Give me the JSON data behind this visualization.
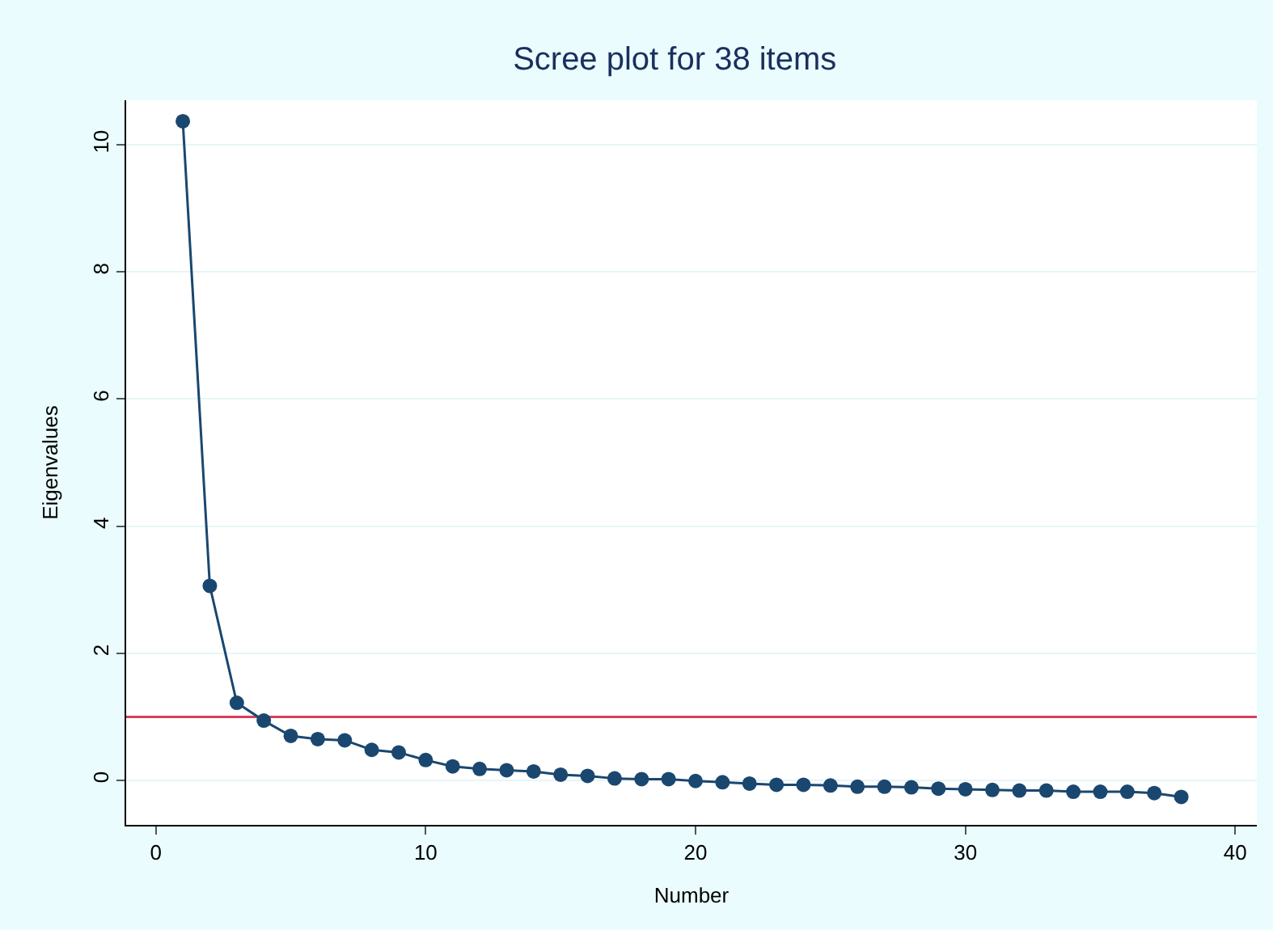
{
  "chart_data": {
    "type": "line",
    "title": "Scree plot for 38 items",
    "xlabel": "Number",
    "ylabel": "Eigenvalues",
    "x": [
      1,
      2,
      3,
      4,
      5,
      6,
      7,
      8,
      9,
      10,
      11,
      12,
      13,
      14,
      15,
      16,
      17,
      18,
      19,
      20,
      21,
      22,
      23,
      24,
      25,
      26,
      27,
      28,
      29,
      30,
      31,
      32,
      33,
      34,
      35,
      36,
      37,
      38
    ],
    "series": [
      {
        "color": "#1a476f",
        "values": [
          10.37,
          3.06,
          1.22,
          0.94,
          0.7,
          0.65,
          0.63,
          0.48,
          0.44,
          0.32,
          0.22,
          0.18,
          0.16,
          0.14,
          0.09,
          0.07,
          0.03,
          0.02,
          0.02,
          -0.01,
          -0.03,
          -0.05,
          -0.07,
          -0.07,
          -0.08,
          -0.1,
          -0.1,
          -0.11,
          -0.13,
          -0.14,
          -0.15,
          -0.16,
          -0.16,
          -0.18,
          -0.18,
          -0.18,
          -0.2,
          -0.26
        ]
      }
    ],
    "marker": "circle",
    "line_style": "solid",
    "xlim": [
      -1.1,
      40.8
    ],
    "ylim": [
      -0.7,
      10.7
    ],
    "xticks": [
      0,
      10,
      20,
      30,
      40
    ],
    "yticks": [
      0,
      2,
      4,
      6,
      8,
      10
    ],
    "grid": "y",
    "legend": false,
    "ref_lines": [
      {
        "axis": "y",
        "value": 1,
        "color": "#d6405a"
      }
    ]
  }
}
